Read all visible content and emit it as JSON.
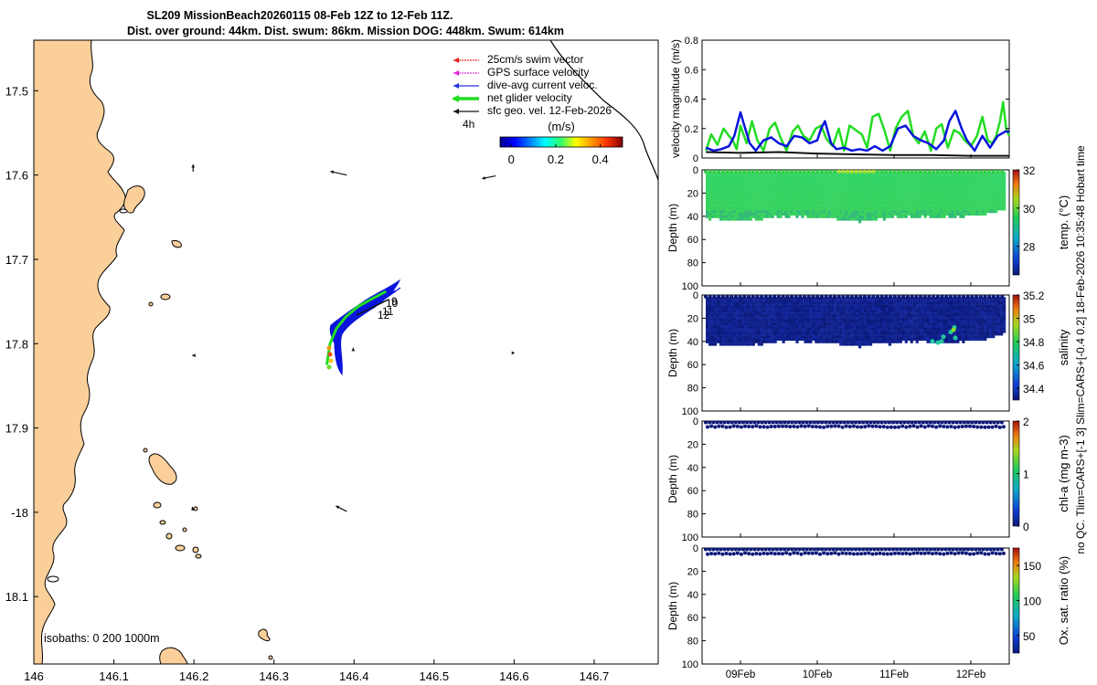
{
  "header": {
    "title_line1": "SL209 MissionBeach20260115 08-Feb 12Z to 12-Feb 11Z.",
    "title_line2": "Dist. over ground: 44km. Dist. swum: 86km. Mission DOG: 448km. Swum: 614km"
  },
  "side_note": "no QC. Tlim=CARS+[-1 3] Slim=CARS+[-0.4 0.2] 18-Feb-2026 10:35:48 Hobart time",
  "colors": {
    "land": "#fbcf9a",
    "vel_green": "#22dd22",
    "vel_blue": "#0a14dc",
    "vel_black": "#111111",
    "deep_blue": "#0a1878",
    "legend_red": "#e8231e",
    "legend_magenta": "#e02bd8",
    "legend_blue": "#2030e0"
  },
  "chart_data": [
    {
      "type": "map",
      "xlim": [
        146.0,
        146.78
      ],
      "ylim": [
        -18.18,
        -17.44
      ],
      "x_ticks": [
        146,
        146.1,
        146.2,
        146.3,
        146.4,
        146.5,
        146.6,
        146.7
      ],
      "x_tick_labels": [
        "146",
        "146.1",
        "146.2",
        "146.3",
        "146.4",
        "146.5",
        "146.6",
        "146.7"
      ],
      "y_ticks": [
        -17.5,
        -17.6,
        -17.7,
        -17.8,
        -17.9,
        -18.0,
        -18.1
      ],
      "y_tick_labels": [
        "17.5",
        "17.6",
        "17.7",
        "17.8",
        "17.9",
        "-18",
        "18.1"
      ],
      "legend": [
        {
          "label": "25cm/s swim vector",
          "color": "legend_red"
        },
        {
          "label": "GPS surface velocity",
          "color": "legend_magenta"
        },
        {
          "label": "dive-avg current veloc.",
          "color": "legend_blue"
        },
        {
          "label": "net glider velocity",
          "color": "vel_green"
        },
        {
          "label": "sfc geo. vel. 12-Feb-2026",
          "color": "vel_black"
        }
      ],
      "legend_extra": "4h",
      "colorbar": {
        "label": "(m/s)",
        "ticks": [
          0,
          0.2,
          0.4
        ],
        "tick_labels": [
          "0",
          "0.2",
          "0.4"
        ],
        "range": [
          -0.05,
          0.5
        ]
      },
      "isobath_label": "isobaths: 0    200   1000m",
      "day_labels": [
        "10",
        "11",
        "12",
        "9"
      ],
      "track": [
        [
          146.366,
          -17.825
        ],
        [
          146.37,
          -17.8
        ],
        [
          146.378,
          -17.782
        ],
        [
          146.39,
          -17.768
        ],
        [
          146.405,
          -17.756
        ],
        [
          146.42,
          -17.748
        ],
        [
          146.44,
          -17.738
        ]
      ],
      "geo_arrows": [
        {
          "lon": 146.199,
          "lat": -17.596,
          "u": 0.0,
          "v": 0.08
        },
        {
          "lon": 146.391,
          "lat": -17.6,
          "u": -0.18,
          "v": 0.04
        },
        {
          "lon": 146.577,
          "lat": -17.601,
          "u": -0.15,
          "v": -0.03
        },
        {
          "lon": 146.199,
          "lat": -17.814,
          "u": -0.01,
          "v": 0.0
        },
        {
          "lon": 146.399,
          "lat": -17.806,
          "u": 0.0,
          "v": 0.01
        },
        {
          "lon": 146.601,
          "lat": -17.811,
          "u": 0.0,
          "v": 0.0
        },
        {
          "lon": 146.199,
          "lat": -17.998,
          "u": -0.01,
          "v": 0.04
        },
        {
          "lon": 146.391,
          "lat": -17.999,
          "u": -0.12,
          "v": 0.06
        }
      ]
    },
    {
      "type": "line",
      "ylabel": "velocity magnitude (m/s)",
      "ylim": [
        0,
        0.8
      ],
      "y_ticks": [
        0,
        0.2,
        0.4,
        0.6,
        0.8
      ],
      "y_tick_labels": [
        "0",
        "0.2",
        "0.4",
        "0.6",
        "0.8"
      ],
      "xlim": [
        8.5,
        12.5
      ],
      "x_ticks": [
        9,
        10,
        11,
        12
      ],
      "x_tick_labels": [
        "09Feb",
        "10Feb",
        "11Feb",
        "12Feb"
      ],
      "series": [
        {
          "name": "net glider velocity",
          "color": "vel_green",
          "x": [
            8.55,
            8.62,
            8.7,
            8.78,
            8.85,
            8.9,
            8.95,
            9.0,
            9.08,
            9.15,
            9.22,
            9.3,
            9.38,
            9.45,
            9.52,
            9.6,
            9.68,
            9.75,
            9.82,
            9.9,
            9.98,
            10.05,
            10.12,
            10.2,
            10.28,
            10.35,
            10.42,
            10.5,
            10.58,
            10.65,
            10.72,
            10.8,
            10.88,
            10.95,
            11.02,
            11.1,
            11.18,
            11.25,
            11.32,
            11.4,
            11.48,
            11.55,
            11.62,
            11.7,
            11.78,
            11.85,
            11.92,
            12.0,
            12.08,
            12.15,
            12.22,
            12.28,
            12.33,
            12.38,
            12.42,
            12.46,
            12.5
          ],
          "y": [
            0.05,
            0.16,
            0.09,
            0.2,
            0.15,
            0.12,
            0.06,
            0.22,
            0.1,
            0.25,
            0.12,
            0.05,
            0.2,
            0.24,
            0.14,
            0.05,
            0.18,
            0.22,
            0.15,
            0.12,
            0.2,
            0.22,
            0.13,
            0.08,
            0.2,
            0.05,
            0.22,
            0.19,
            0.16,
            0.07,
            0.28,
            0.3,
            0.18,
            0.05,
            0.2,
            0.28,
            0.32,
            0.15,
            0.1,
            0.18,
            0.05,
            0.2,
            0.23,
            0.07,
            0.19,
            0.17,
            0.12,
            0.08,
            0.15,
            0.28,
            0.12,
            0.1,
            0.15,
            0.25,
            0.38,
            0.2,
            0.15
          ]
        },
        {
          "name": "dive-avg current veloc.",
          "color": "vel_blue",
          "x": [
            8.55,
            8.65,
            8.75,
            8.85,
            8.92,
            9.0,
            9.05,
            9.12,
            9.2,
            9.3,
            9.4,
            9.5,
            9.6,
            9.7,
            9.8,
            9.9,
            10.0,
            10.05,
            10.1,
            10.18,
            10.25,
            10.35,
            10.45,
            10.55,
            10.65,
            10.75,
            10.85,
            10.95,
            11.05,
            11.15,
            11.25,
            11.35,
            11.45,
            11.55,
            11.65,
            11.72,
            11.8,
            11.88,
            11.95,
            12.05,
            12.15,
            12.25,
            12.35,
            12.45,
            12.5
          ],
          "y": [
            0.07,
            0.05,
            0.06,
            0.08,
            0.15,
            0.31,
            0.22,
            0.1,
            0.05,
            0.12,
            0.14,
            0.1,
            0.08,
            0.15,
            0.14,
            0.1,
            0.12,
            0.2,
            0.25,
            0.1,
            0.06,
            0.07,
            0.05,
            0.06,
            0.05,
            0.08,
            0.05,
            0.08,
            0.2,
            0.22,
            0.15,
            0.12,
            0.1,
            0.06,
            0.12,
            0.25,
            0.32,
            0.2,
            0.12,
            0.05,
            0.15,
            0.07,
            0.15,
            0.18,
            0.18
          ]
        },
        {
          "name": "sfc geo. vel.",
          "color": "vel_black",
          "x": [
            8.55,
            9.0,
            9.5,
            10.0,
            10.5,
            11.0,
            11.5,
            12.0,
            12.5
          ],
          "y": [
            0.04,
            0.035,
            0.04,
            0.03,
            0.025,
            0.02,
            0.02,
            0.015,
            0.015
          ]
        }
      ]
    },
    {
      "type": "scatter-section",
      "variable": "temp",
      "ylabel": "Depth (m)",
      "cbar_label": "temp. (°C)",
      "ylim": [
        0,
        100
      ],
      "y_ticks": [
        0,
        20,
        40,
        60,
        80,
        100
      ],
      "y_tick_labels": [
        "0",
        "20",
        "40",
        "60",
        "80",
        "100"
      ],
      "cbar_range": [
        26.5,
        32
      ],
      "cbar_ticks": [
        28,
        30,
        32
      ],
      "cbar_tick_labels": [
        "28",
        "30",
        "32"
      ],
      "depth_max": 44
    },
    {
      "type": "scatter-section",
      "variable": "salinity",
      "ylabel": "Depth (m)",
      "cbar_label": "salinity",
      "ylim": [
        0,
        100
      ],
      "y_ticks": [
        0,
        20,
        40,
        60,
        80,
        100
      ],
      "y_tick_labels": [
        "0",
        "20",
        "40",
        "60",
        "80",
        "100"
      ],
      "cbar_range": [
        34.3,
        35.2
      ],
      "cbar_ticks": [
        34.4,
        34.6,
        34.8,
        35,
        35.2
      ],
      "cbar_tick_labels": [
        "34.4",
        "34.6",
        "34.8",
        "35",
        "35.2"
      ],
      "depth_max": 44
    },
    {
      "type": "scatter-section",
      "variable": "chl-a",
      "ylabel": "Depth (m)",
      "cbar_label": "chl-a (mg m-3)",
      "ylim": [
        0,
        100
      ],
      "y_ticks": [
        0,
        20,
        40,
        60,
        80,
        100
      ],
      "y_tick_labels": [
        "0",
        "20",
        "40",
        "60",
        "80",
        "100"
      ],
      "cbar_range": [
        0,
        2
      ],
      "cbar_ticks": [
        0,
        1,
        2
      ],
      "cbar_tick_labels": [
        "0",
        "1",
        "2"
      ],
      "depth_max": 5
    },
    {
      "type": "scatter-section",
      "variable": "oxygen",
      "ylabel": "Depth (m)",
      "cbar_label": "Ox. sat. ratio (%)",
      "ylim": [
        0,
        100
      ],
      "y_ticks": [
        0,
        20,
        40,
        60,
        80,
        100
      ],
      "y_tick_labels": [
        "0",
        "20",
        "40",
        "60",
        "80",
        "100"
      ],
      "cbar_range": [
        25,
        175
      ],
      "cbar_ticks": [
        50,
        100,
        150
      ],
      "cbar_tick_labels": [
        "50",
        "100",
        "150"
      ],
      "depth_max": 5
    }
  ]
}
